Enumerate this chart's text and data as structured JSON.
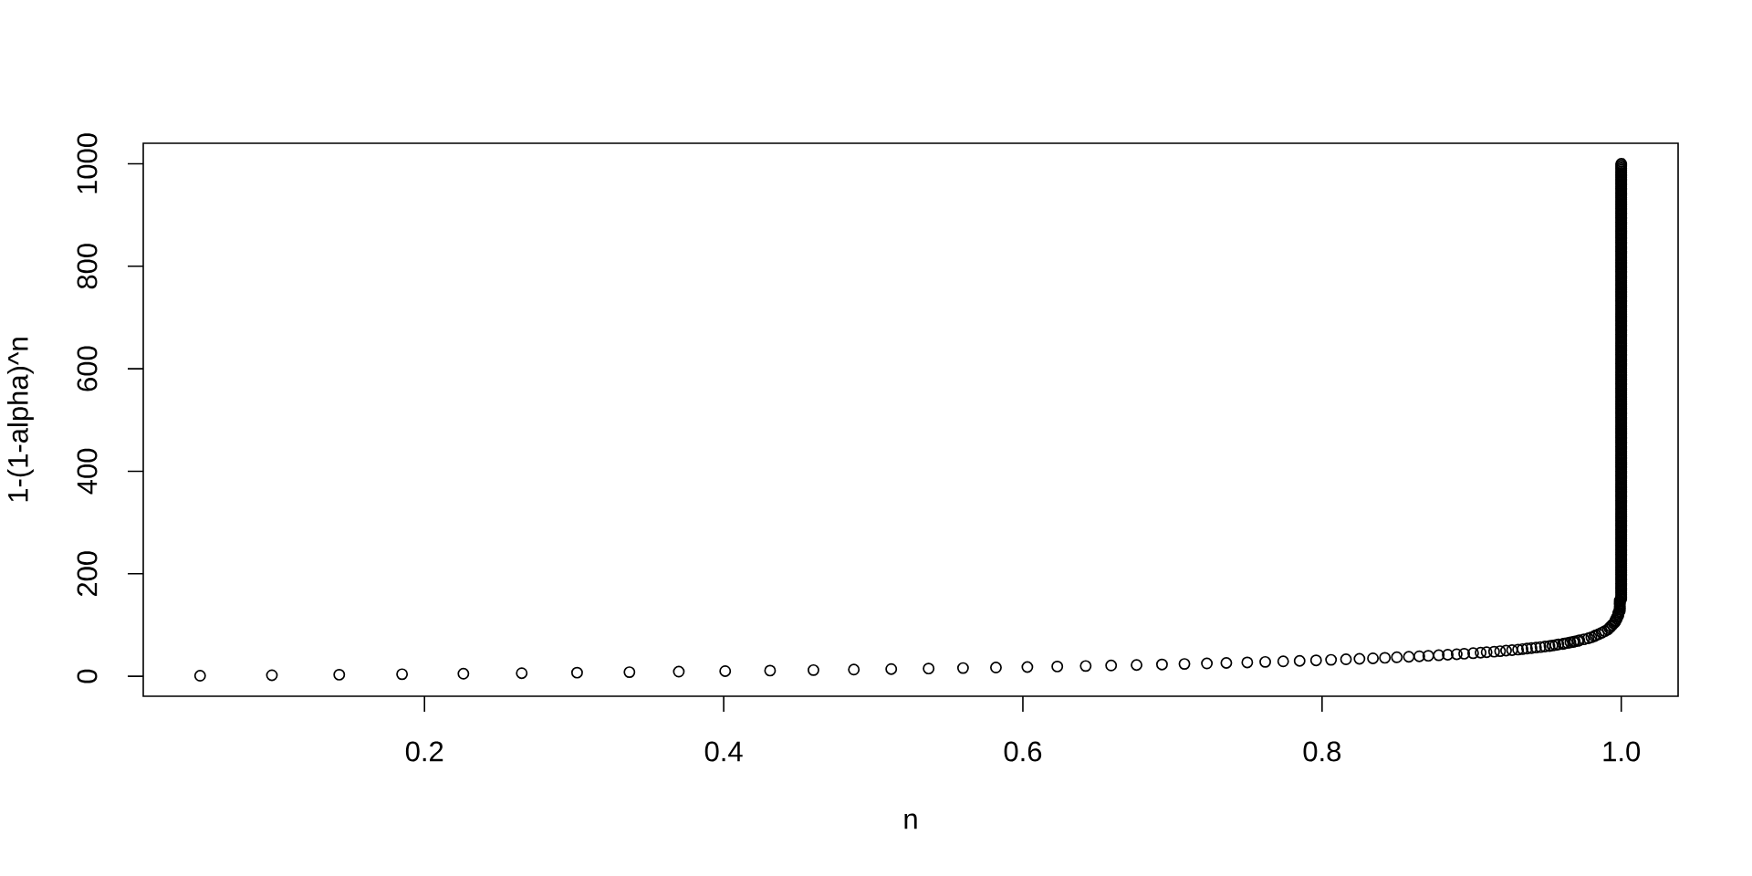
{
  "chart_data": {
    "type": "scatter",
    "xlabel": "n",
    "ylabel": "1-(1-alpha)^n",
    "x": [
      0.05,
      0.098,
      0.143,
      0.185,
      0.226,
      0.265,
      0.302,
      0.337,
      0.37,
      0.401,
      0.431,
      0.46,
      0.487,
      0.512,
      0.537,
      0.56,
      0.582,
      0.603,
      0.623,
      0.642,
      0.659,
      0.676,
      0.693,
      0.708,
      0.723,
      0.736,
      0.75,
      0.762,
      0.774,
      0.785,
      0.796,
      0.806,
      0.816,
      0.825,
      0.834,
      0.842,
      0.85,
      0.858,
      0.865,
      0.871,
      0.878,
      0.884,
      0.89,
      0.895,
      0.901,
      0.906,
      0.91,
      0.915,
      0.919,
      0.923,
      0.927,
      0.931,
      0.934,
      0.937,
      0.94,
      0.943,
      0.946,
      0.949,
      0.952,
      0.954,
      0.956,
      0.958,
      0.961,
      0.962,
      0.964,
      0.966,
      0.968,
      0.969,
      0.971,
      0.972,
      0.975,
      0.978,
      0.98,
      0.982,
      0.983,
      0.985,
      0.987,
      0.989,
      0.991,
      0.992,
      0.993,
      0.994,
      0.995,
      0.996,
      0.996,
      0.997,
      0.997,
      0.998,
      0.998,
      0.998,
      0.999,
      0.999,
      0.999,
      0.999,
      0.999,
      0.999,
      0.999,
      0.999,
      1,
      1,
      1,
      1,
      1,
      1,
      1,
      1,
      1,
      1,
      1,
      1,
      1,
      1,
      1,
      1,
      1,
      1,
      1,
      1,
      1,
      1,
      1,
      1,
      1,
      1,
      1,
      1,
      1,
      1,
      1,
      1,
      1,
      1,
      1,
      1,
      1,
      1,
      1,
      1,
      1,
      1,
      1,
      1,
      1,
      1,
      1,
      1,
      1,
      1,
      1,
      1,
      1,
      1,
      1,
      1,
      1,
      1,
      1,
      1,
      1,
      1,
      1,
      1,
      1,
      1,
      1,
      1,
      1,
      1,
      1,
      1,
      1,
      1,
      1,
      1,
      1,
      1,
      1,
      1,
      1,
      1,
      1,
      1,
      1,
      1,
      1,
      1,
      1,
      1,
      1,
      1,
      1,
      1,
      1,
      1,
      1,
      1,
      1,
      1,
      1,
      1,
      1,
      1,
      1,
      1,
      1,
      1,
      1,
      1,
      1,
      1,
      1,
      1,
      1,
      1,
      1,
      1,
      1,
      1,
      1,
      1,
      1,
      1,
      1,
      1,
      1,
      1,
      1,
      1,
      1,
      1,
      1,
      1,
      1,
      1,
      1,
      1,
      1,
      1,
      1,
      1,
      1,
      1,
      1,
      1,
      1,
      1,
      1,
      1,
      1,
      1,
      1,
      1,
      1,
      1,
      1,
      1,
      1,
      1,
      1,
      1,
      1,
      1,
      1,
      1,
      1,
      1,
      1,
      1,
      1,
      1,
      1,
      1,
      1,
      1,
      1,
      1,
      1,
      1,
      1,
      1,
      1,
      1,
      1,
      1,
      1,
      1,
      1,
      1,
      1,
      1,
      1,
      1,
      1,
      1,
      1,
      1,
      1,
      1,
      1,
      1,
      1,
      1,
      1,
      1,
      1,
      1,
      1,
      1,
      1,
      1,
      1,
      1,
      1,
      1,
      1,
      1,
      1,
      1,
      1,
      1,
      1,
      1,
      1,
      1,
      1,
      1,
      1,
      1,
      1,
      1,
      1,
      1,
      1,
      1,
      1,
      1,
      1,
      1,
      1,
      1,
      1,
      1,
      1,
      1,
      1,
      1,
      1,
      1,
      1,
      1,
      1,
      1,
      1,
      1,
      1,
      1,
      1,
      1,
      1,
      1,
      1,
      1,
      1,
      1,
      1,
      1,
      1,
      1,
      1,
      1,
      1,
      1,
      1,
      1,
      1,
      1,
      1,
      1,
      1,
      1,
      1,
      1
    ],
    "values": [
      1,
      2,
      3,
      4,
      5,
      6,
      7,
      8,
      9,
      10,
      11,
      12,
      13,
      14,
      15,
      16,
      17,
      18,
      19,
      20,
      21,
      22,
      23,
      24,
      25,
      26,
      27,
      28,
      29,
      30,
      31,
      32,
      33,
      34,
      35,
      36,
      37,
      38,
      39,
      40,
      41,
      42,
      43,
      44,
      45,
      46,
      47,
      48,
      49,
      50,
      51,
      52,
      53,
      54,
      55,
      56,
      57,
      58,
      59,
      60,
      61,
      62,
      63,
      64,
      65,
      66,
      67,
      68,
      69,
      70,
      72,
      74,
      76,
      78,
      80,
      82,
      85,
      88,
      91,
      94,
      97,
      100,
      103,
      106,
      109,
      112,
      115,
      118,
      121,
      124,
      127,
      130,
      133,
      136,
      139,
      142,
      145,
      148,
      151,
      154,
      157,
      160,
      163,
      166,
      169,
      172,
      175,
      178,
      181,
      184,
      187,
      190,
      193,
      196,
      199,
      202,
      205,
      208,
      211,
      214,
      217,
      220,
      223,
      226,
      229,
      232,
      235,
      238,
      241,
      244,
      247,
      250,
      253,
      256,
      259,
      262,
      265,
      268,
      271,
      274,
      277,
      280,
      283,
      286,
      289,
      292,
      295,
      298,
      301,
      304,
      307,
      310,
      313,
      316,
      319,
      322,
      325,
      328,
      331,
      334,
      337,
      340,
      343,
      346,
      349,
      352,
      355,
      358,
      361,
      364,
      367,
      370,
      373,
      376,
      379,
      382,
      385,
      388,
      391,
      394,
      397,
      400,
      403,
      406,
      409,
      412,
      415,
      418,
      421,
      424,
      427,
      430,
      433,
      436,
      439,
      442,
      445,
      448,
      451,
      454,
      457,
      460,
      463,
      466,
      469,
      472,
      475,
      478,
      481,
      484,
      487,
      490,
      493,
      496,
      499,
      502,
      505,
      508,
      511,
      514,
      517,
      520,
      523,
      526,
      529,
      532,
      535,
      538,
      541,
      544,
      547,
      550,
      553,
      556,
      559,
      562,
      565,
      568,
      571,
      574,
      577,
      580,
      583,
      586,
      589,
      592,
      595,
      598,
      601,
      604,
      607,
      610,
      613,
      616,
      619,
      622,
      625,
      628,
      631,
      634,
      637,
      640,
      643,
      646,
      649,
      652,
      655,
      658,
      661,
      664,
      667,
      670,
      673,
      676,
      679,
      682,
      685,
      688,
      691,
      694,
      697,
      700,
      703,
      706,
      709,
      712,
      715,
      718,
      721,
      724,
      727,
      730,
      733,
      736,
      739,
      742,
      745,
      748,
      751,
      754,
      757,
      760,
      763,
      766,
      769,
      772,
      775,
      778,
      781,
      784,
      787,
      790,
      793,
      796,
      799,
      802,
      805,
      808,
      811,
      814,
      817,
      820,
      823,
      826,
      829,
      832,
      835,
      838,
      841,
      844,
      847,
      850,
      853,
      856,
      859,
      862,
      865,
      868,
      871,
      874,
      877,
      880,
      883,
      886,
      889,
      892,
      895,
      898,
      901,
      904,
      907,
      910,
      913,
      916,
      919,
      922,
      925,
      928,
      931,
      934,
      937,
      940,
      943,
      946,
      949,
      952,
      955,
      958,
      961,
      964,
      967,
      970,
      973,
      976,
      979,
      982,
      985,
      988,
      991,
      994,
      997,
      1000
    ],
    "color": "#000000",
    "marker": "circle",
    "xlim": [
      0.012,
      1.038
    ],
    "ylim": [
      -39,
      1040
    ],
    "xticks": [
      0.2,
      0.4,
      0.6,
      0.8,
      {
        "value": 1,
        "label": "1.0"
      }
    ],
    "yticks": [
      0,
      200,
      400,
      600,
      800,
      1000
    ]
  }
}
